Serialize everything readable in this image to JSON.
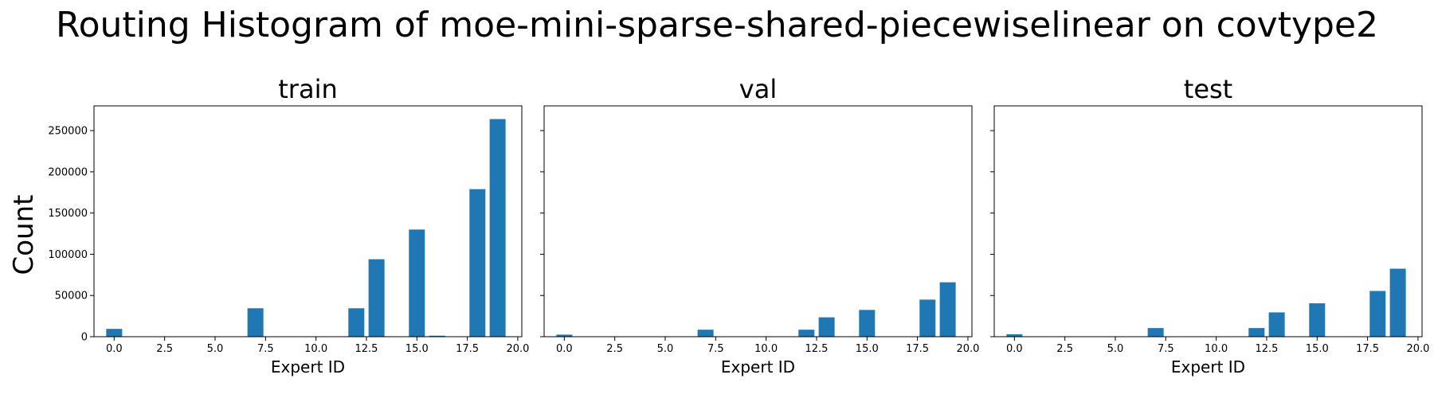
{
  "chart_data": {
    "type": "bar",
    "title": "Routing Histogram of moe-mini-sparse-shared-piecewiselinear on covtype2",
    "ylabel": "Count",
    "sharey": true,
    "ylim": [
      0,
      280000
    ],
    "yticks": [
      0,
      50000,
      100000,
      150000,
      200000,
      250000
    ],
    "xlim": [
      -1,
      20.2
    ],
    "xticks": [
      0.0,
      2.5,
      5.0,
      7.5,
      10.0,
      12.5,
      15.0,
      17.5,
      20.0
    ],
    "xticklabels": [
      "0.0",
      "2.5",
      "5.0",
      "7.5",
      "10.0",
      "12.5",
      "15.0",
      "17.5",
      "20.0"
    ],
    "bar_color": "#1f77b4",
    "panels": [
      {
        "title": "train",
        "xlabel": "Expert ID",
        "x": [
          0,
          7,
          12,
          13,
          15,
          16,
          18,
          19
        ],
        "values": [
          9500,
          34500,
          34500,
          94000,
          130000,
          1200,
          179000,
          264000
        ]
      },
      {
        "title": "val",
        "xlabel": "Expert ID",
        "x": [
          0,
          7,
          12,
          13,
          15,
          18,
          19
        ],
        "values": [
          2500,
          8500,
          8500,
          23500,
          32500,
          45000,
          66000
        ]
      },
      {
        "title": "test",
        "xlabel": "Expert ID",
        "x": [
          0,
          7,
          12,
          13,
          15,
          18,
          19
        ],
        "values": [
          3000,
          10500,
          10500,
          29500,
          40500,
          55500,
          82500
        ]
      }
    ]
  }
}
